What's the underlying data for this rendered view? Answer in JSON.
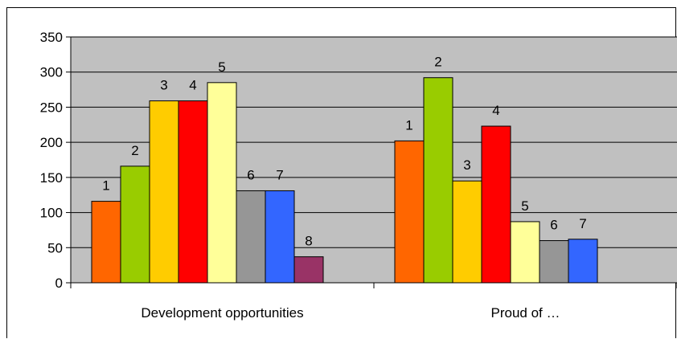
{
  "chart_data": {
    "type": "bar",
    "title": "",
    "xlabel": "",
    "ylabel": "",
    "ylim": [
      0,
      350
    ],
    "yticks": [
      0,
      50,
      100,
      150,
      200,
      250,
      300,
      350
    ],
    "grid": true,
    "legend": "none",
    "plot_background": "#c0c0c0",
    "categories": [
      "Development opportunities",
      "Proud of …"
    ],
    "groups": [
      {
        "category": "Development opportunities",
        "bars": [
          {
            "label": "1",
            "value": 116,
            "color": "#ff6600"
          },
          {
            "label": "2",
            "value": 166,
            "color": "#99cc00"
          },
          {
            "label": "3",
            "value": 259,
            "color": "#ffcc00"
          },
          {
            "label": "4",
            "value": 259,
            "color": "#ff0000"
          },
          {
            "label": "5",
            "value": 285,
            "color": "#ffff99"
          },
          {
            "label": "6",
            "value": 131,
            "color": "#969696"
          },
          {
            "label": "7",
            "value": 131,
            "color": "#3366ff"
          },
          {
            "label": "8",
            "value": 37,
            "color": "#993366"
          }
        ]
      },
      {
        "category": "Proud of …",
        "bars": [
          {
            "label": "1",
            "value": 202,
            "color": "#ff6600"
          },
          {
            "label": "2",
            "value": 292,
            "color": "#99cc00"
          },
          {
            "label": "3",
            "value": 145,
            "color": "#ffcc00"
          },
          {
            "label": "4",
            "value": 223,
            "color": "#ff0000"
          },
          {
            "label": "5",
            "value": 87,
            "color": "#ffff99"
          },
          {
            "label": "6",
            "value": 60,
            "color": "#969696"
          },
          {
            "label": "7",
            "value": 62,
            "color": "#3366ff"
          }
        ]
      }
    ]
  }
}
